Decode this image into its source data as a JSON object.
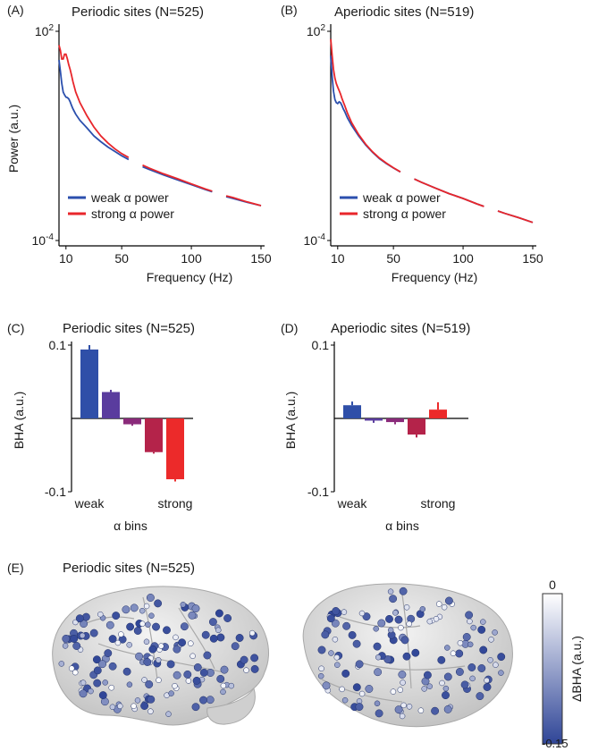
{
  "colors": {
    "weak": "#2b4fad",
    "strong": "#e8262b",
    "bar_bins": [
      "#2f4fa8",
      "#5a3c9e",
      "#8a2a7a",
      "#b4234a",
      "#ec2a2a"
    ],
    "bha_colormap_high": "#ffffff",
    "bha_colormap_low": "#2f4597"
  },
  "chart_data": [
    {
      "panel": "(A)",
      "type": "line",
      "title": "Periodic sites (N=525)",
      "xlabel": "Frequency (Hz)",
      "ylabel": "Power (a.u.)",
      "yscale": "log",
      "xlim": [
        5,
        150
      ],
      "ylim": [
        0.0001,
        100
      ],
      "xticks": [
        10,
        50,
        100,
        150
      ],
      "yticks": [
        "10^2",
        "10^-4"
      ],
      "legend_position": "bottom-left",
      "series": [
        {
          "name": "weak α power",
          "color_key": "weak",
          "x": [
            5,
            6,
            7,
            8,
            9,
            10,
            11,
            12,
            13,
            14,
            15,
            17,
            20,
            25,
            30,
            35,
            40,
            45,
            50,
            55,
            65,
            70,
            80,
            90,
            100,
            110,
            115,
            125,
            130,
            140,
            150
          ],
          "y": [
            15,
            7,
            3.2,
            1.8,
            1.5,
            1.3,
            1.25,
            1.15,
            0.95,
            0.75,
            0.6,
            0.42,
            0.28,
            0.17,
            0.1,
            0.068,
            0.048,
            0.036,
            0.027,
            0.021,
            0.013,
            0.0108,
            0.0076,
            0.0055,
            0.004,
            0.0029,
            0.0025,
            0.0018,
            0.0016,
            0.00125,
            0.001
          ],
          "gaps": [
            [
              57,
              63
            ],
            [
              117,
              123
            ]
          ]
        },
        {
          "name": "strong α power",
          "color_key": "strong",
          "x": [
            5,
            6,
            7,
            8,
            9,
            10,
            11,
            12,
            13,
            14,
            15,
            17,
            20,
            25,
            30,
            35,
            40,
            45,
            50,
            55,
            65,
            70,
            80,
            90,
            100,
            110,
            115,
            125,
            130,
            140,
            150
          ],
          "y": [
            40,
            28,
            16,
            16,
            22,
            22,
            16,
            11,
            8,
            5.5,
            3.6,
            1.8,
            0.9,
            0.38,
            0.18,
            0.1,
            0.063,
            0.043,
            0.031,
            0.024,
            0.0145,
            0.0118,
            0.0082,
            0.0059,
            0.0042,
            0.003,
            0.0026,
            0.0019,
            0.0017,
            0.00128,
            0.001
          ],
          "gaps": [
            [
              57,
              63
            ],
            [
              117,
              123
            ]
          ]
        }
      ]
    },
    {
      "panel": "(B)",
      "type": "line",
      "title": "Aperiodic sites (N=519)",
      "xlabel": "Frequency (Hz)",
      "ylabel": "",
      "yscale": "log",
      "xlim": [
        5,
        150
      ],
      "ylim": [
        0.0001,
        100
      ],
      "xticks": [
        10,
        50,
        100,
        150
      ],
      "yticks": [
        "10^2",
        "10^-4"
      ],
      "legend_position": "bottom-left",
      "series": [
        {
          "name": "weak α power",
          "color_key": "weak",
          "x": [
            5,
            6,
            7,
            8,
            9,
            10,
            11,
            12,
            13,
            14,
            15,
            17,
            20,
            25,
            30,
            35,
            40,
            45,
            50,
            55,
            65,
            70,
            80,
            90,
            100,
            110,
            115,
            125,
            130,
            140,
            150
          ],
          "y": [
            20,
            5,
            1.9,
            1.1,
            0.9,
            0.85,
            0.95,
            0.9,
            0.75,
            0.6,
            0.5,
            0.33,
            0.2,
            0.1,
            0.055,
            0.034,
            0.022,
            0.016,
            0.012,
            0.0092,
            0.0058,
            0.0047,
            0.0032,
            0.0022,
            0.0016,
            0.00112,
            0.00095,
            0.0007,
            0.0006,
            0.00045,
            0.00033
          ],
          "gaps": [
            [
              57,
              63
            ],
            [
              117,
              123
            ]
          ]
        },
        {
          "name": "strong α power",
          "color_key": "strong",
          "x": [
            5,
            6,
            7,
            8,
            9,
            10,
            11,
            12,
            13,
            14,
            15,
            17,
            20,
            25,
            30,
            35,
            40,
            45,
            50,
            55,
            65,
            70,
            80,
            90,
            100,
            110,
            115,
            125,
            130,
            140,
            150
          ],
          "y": [
            60,
            20,
            8,
            4.5,
            3.2,
            2.5,
            2,
            1.6,
            1.2,
            0.95,
            0.75,
            0.45,
            0.24,
            0.11,
            0.058,
            0.035,
            0.023,
            0.0165,
            0.0122,
            0.0093,
            0.0058,
            0.0047,
            0.0032,
            0.0022,
            0.0016,
            0.00112,
            0.00095,
            0.0007,
            0.0006,
            0.00045,
            0.00033
          ],
          "gaps": [
            [
              57,
              63
            ],
            [
              117,
              123
            ]
          ]
        }
      ]
    },
    {
      "panel": "(C)",
      "type": "bar",
      "title": "Periodic sites (N=525)",
      "xlabel": "α bins",
      "ylabel": "BHA (a.u.)",
      "ylim": [
        -0.1,
        0.1
      ],
      "yticks": [
        "0.1",
        "-0.1"
      ],
      "categories": [
        "weak",
        "",
        "",
        "",
        "strong"
      ],
      "values": [
        0.094,
        0.036,
        -0.008,
        -0.046,
        -0.083
      ],
      "errors": [
        0.006,
        0.003,
        0.002,
        0.002,
        0.003
      ]
    },
    {
      "panel": "(D)",
      "type": "bar",
      "title": "Aperiodic sites (N=519)",
      "xlabel": "α bins",
      "ylabel": "BHA (a.u.)",
      "ylim": [
        -0.1,
        0.1
      ],
      "yticks": [
        "0.1",
        "-0.1"
      ],
      "categories": [
        "weak",
        "",
        "",
        "",
        "strong"
      ],
      "values": [
        0.018,
        -0.003,
        -0.005,
        -0.022,
        0.012
      ],
      "errors": [
        0.005,
        0.003,
        0.003,
        0.004,
        0.01
      ]
    },
    {
      "panel": "(E)",
      "type": "scatter",
      "title": "Periodic sites (N=525)",
      "colorbar_label": "ΔBHA (a.u.)",
      "colorbar_range": [
        -0.15,
        0
      ],
      "colorbar_ticks": [
        "0",
        "-0.15"
      ]
    }
  ]
}
